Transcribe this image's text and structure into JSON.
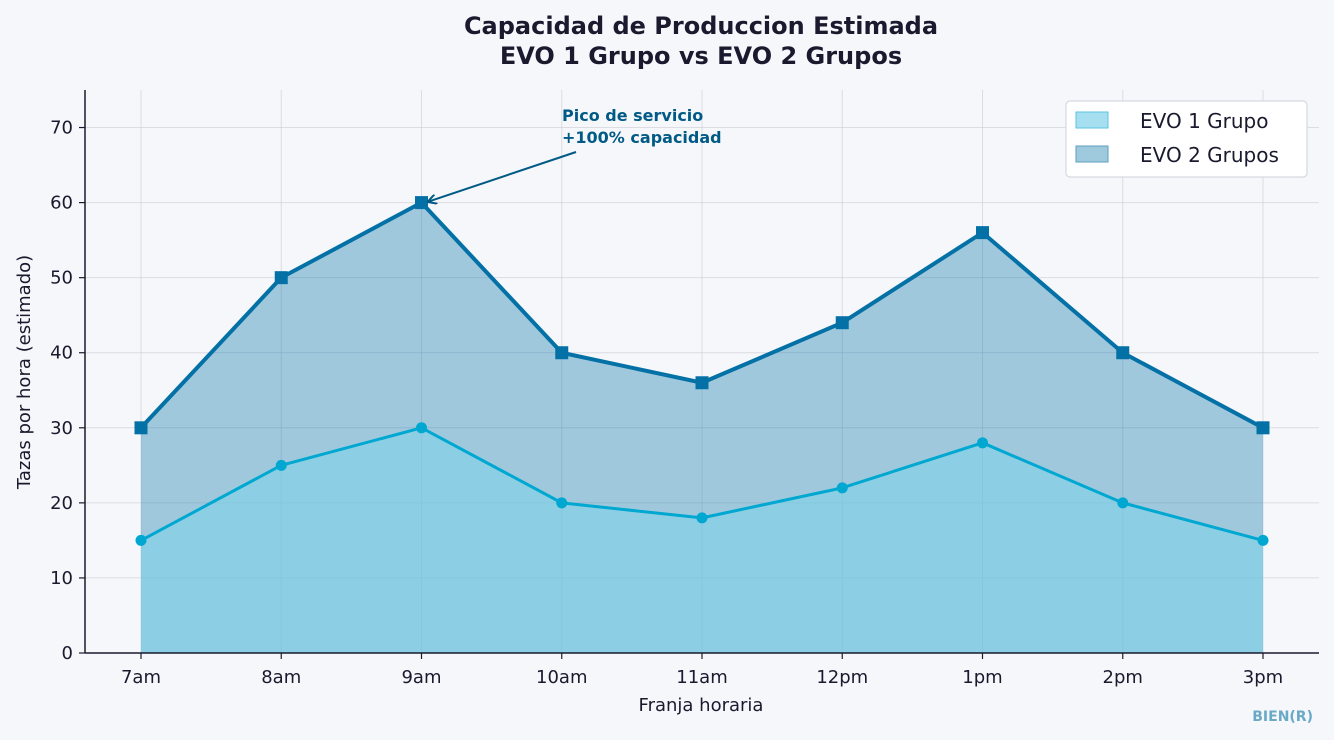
{
  "chart_data": {
    "type": "area",
    "title_line1": "Capacidad de Produccion Estimada",
    "title_line2": "EVO 1 Grupo vs EVO 2 Grupos",
    "xlabel": "Franja horaria",
    "ylabel": "Tazas por hora (estimado)",
    "categories": [
      "7am",
      "8am",
      "9am",
      "10am",
      "11am",
      "12pm",
      "1pm",
      "2pm",
      "3pm"
    ],
    "ylim": [
      0,
      75
    ],
    "yticks": [
      "0",
      "10",
      "20",
      "30",
      "40",
      "50",
      "60",
      "70"
    ],
    "grid": true,
    "legend_position": "top-right",
    "series": [
      {
        "name": "EVO 1 Grupo",
        "values": [
          15,
          25,
          30,
          20,
          18,
          22,
          28,
          20,
          15
        ],
        "color": "#00a8d1",
        "marker": "circle"
      },
      {
        "name": "EVO 2 Grupos",
        "values": [
          30,
          50,
          60,
          40,
          36,
          44,
          56,
          40,
          30
        ],
        "color": "#0471a6",
        "marker": "square"
      }
    ],
    "annotation": {
      "line1": "Pico de servicio",
      "line2": "+100% capacidad",
      "target_category": "9am",
      "target_value": 60
    }
  },
  "watermark": "BIEN(R)"
}
